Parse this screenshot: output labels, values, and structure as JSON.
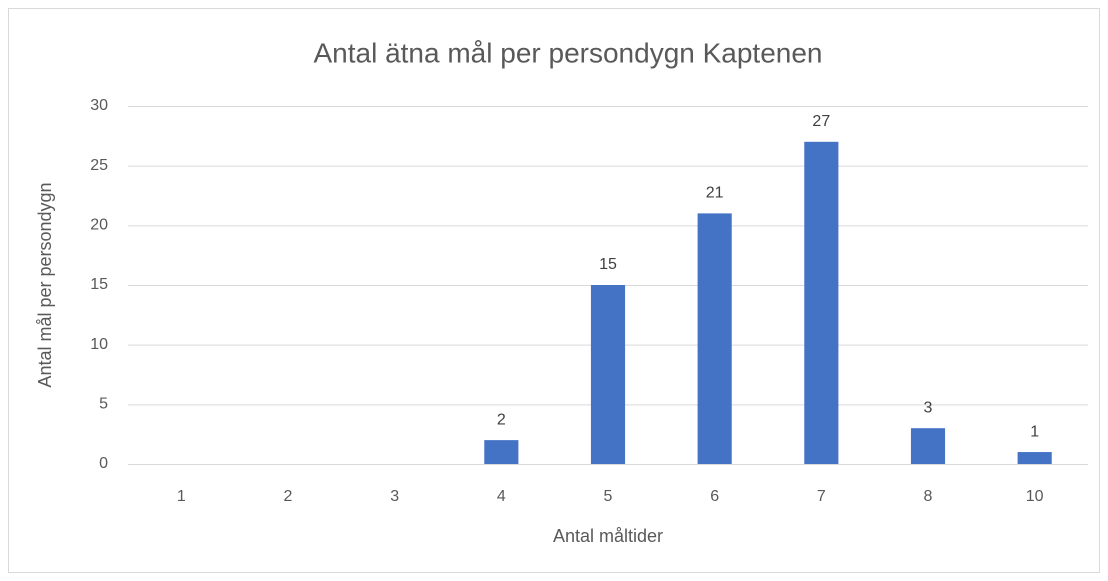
{
  "chart_data": {
    "type": "bar",
    "title": "Antal ätna mål per persondygn Kaptenen",
    "x_label": "Antal måltider",
    "y_label": "Antal mål per persondygn",
    "categories": [
      "1",
      "2",
      "3",
      "4",
      "5",
      "6",
      "7",
      "8",
      "10"
    ],
    "values": [
      null,
      null,
      null,
      2,
      15,
      21,
      27,
      3,
      1
    ],
    "color": "#4472c4",
    "ylim": [
      0,
      30
    ],
    "yticks": [
      0,
      5,
      10,
      15,
      20,
      25,
      30
    ],
    "grid": true
  }
}
